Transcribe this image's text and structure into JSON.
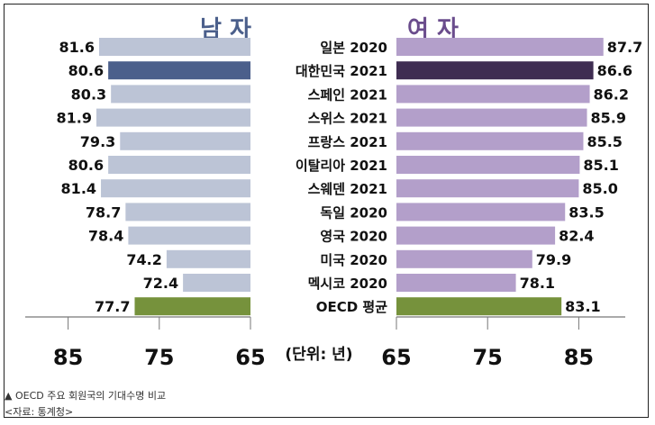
{
  "chart_data": [
    {
      "type": "bar",
      "orientation": "horizontal",
      "direction": "right-to-left",
      "title": "남 자",
      "categories": [
        "일본 2020",
        "대한민국 2021",
        "스페인 2021",
        "스위스 2021",
        "프랑스 2021",
        "이탈리아 2021",
        "스웨덴 2021",
        "독일 2020",
        "영국 2020",
        "미국 2020",
        "멕시코 2020",
        "OECD 평균"
      ],
      "values": [
        81.6,
        80.6,
        80.3,
        81.9,
        79.3,
        80.6,
        81.4,
        78.7,
        78.4,
        74.2,
        72.4,
        77.7
      ],
      "xlim": [
        65,
        85
      ],
      "ticks": [
        "85",
        "75",
        "65"
      ],
      "tick_values": [
        85,
        75,
        65
      ]
    },
    {
      "type": "bar",
      "orientation": "horizontal",
      "title": "여 자",
      "categories": [
        "일본 2020",
        "대한민국 2021",
        "스페인 2021",
        "스위스 2021",
        "프랑스 2021",
        "이탈리아 2021",
        "스웨덴 2021",
        "독일 2020",
        "영국 2020",
        "미국 2020",
        "멕시코 2020",
        "OECD 평균"
      ],
      "values": [
        87.7,
        86.6,
        86.2,
        85.9,
        85.5,
        85.1,
        85.0,
        83.5,
        82.4,
        79.9,
        78.1,
        83.1
      ],
      "value_labels": [
        "87.7",
        "86.6",
        "86.2",
        "85.9",
        "85.5",
        "85.1",
        "85.0",
        "83.5",
        "82.4",
        "79.9",
        "78.1",
        "83.1"
      ],
      "xlim": [
        65,
        85
      ],
      "ticks": [
        "65",
        "75",
        "85"
      ],
      "tick_values": [
        65,
        75,
        85
      ]
    }
  ],
  "unit_label": "(단위: 년)",
  "colors": {
    "male": "#bcc4d6",
    "male_highlight": "#4b5f8b",
    "female": "#b39fca",
    "female_highlight": "#3f2d52",
    "oecd": "#76923c",
    "male_title": "#4b5f8b",
    "female_title": "#6a4c8c"
  },
  "caption": "▲ OECD 주요 회원국의 기대수명 비교",
  "source": "<자료: 통계청>"
}
